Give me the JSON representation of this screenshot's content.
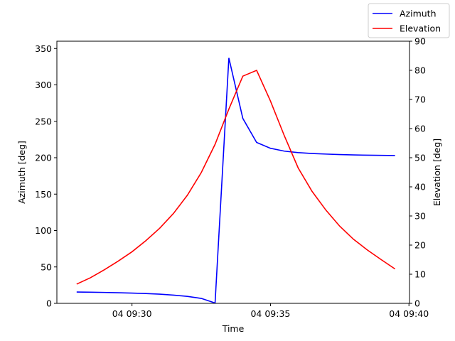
{
  "chart_data": {
    "type": "line",
    "xlabel": "Time",
    "ylabel_left": "Azimuth [deg]",
    "ylabel_right": "Elevation [deg]",
    "x_ticks": [
      {
        "t": 9.5,
        "label": "04 09:30"
      },
      {
        "t": 9.5833333,
        "label": "04 09:35"
      },
      {
        "t": 9.6666667,
        "label": "04 09:40"
      }
    ],
    "xlim_hours": [
      9.4548,
      9.667
    ],
    "ylim_left": [
      0,
      360
    ],
    "yticks_left": [
      "0",
      "50",
      "100",
      "150",
      "200",
      "250",
      "300",
      "350"
    ],
    "ylim_right": [
      0,
      90
    ],
    "yticks_right": [
      "0",
      "10",
      "20",
      "30",
      "40",
      "50",
      "60",
      "70",
      "80",
      "90"
    ],
    "legend_position": "top-right",
    "grid": false,
    "series": [
      {
        "name": "Azimuth",
        "axis": "left",
        "color": "#0000ff",
        "points": [
          [
            9.4667,
            15.5
          ],
          [
            9.475,
            15.3
          ],
          [
            9.4833,
            15.0
          ],
          [
            9.4917,
            14.6
          ],
          [
            9.5,
            14.1
          ],
          [
            9.5083,
            13.5
          ],
          [
            9.5167,
            12.6
          ],
          [
            9.525,
            11.3
          ],
          [
            9.5333,
            9.6
          ],
          [
            9.5417,
            6.8
          ],
          [
            9.55,
            0.5
          ],
          [
            9.5583,
            337
          ],
          [
            9.5667,
            254
          ],
          [
            9.575,
            221
          ],
          [
            9.5833,
            213
          ],
          [
            9.5917,
            209
          ],
          [
            9.6,
            207
          ],
          [
            9.6083,
            205.8
          ],
          [
            9.6167,
            205
          ],
          [
            9.625,
            204.3
          ],
          [
            9.6333,
            203.8
          ],
          [
            9.6417,
            203.5
          ],
          [
            9.65,
            203.2
          ],
          [
            9.6583,
            203
          ]
        ]
      },
      {
        "name": "Elevation",
        "axis": "right",
        "color": "#ff0000",
        "points": [
          [
            9.4667,
            6.6
          ],
          [
            9.475,
            8.8
          ],
          [
            9.4833,
            11.5
          ],
          [
            9.4917,
            14.5
          ],
          [
            9.5,
            17.7
          ],
          [
            9.5083,
            21.5
          ],
          [
            9.5167,
            25.8
          ],
          [
            9.525,
            30.9
          ],
          [
            9.5333,
            37.1
          ],
          [
            9.5417,
            44.9
          ],
          [
            9.55,
            54.6
          ],
          [
            9.5583,
            66.7
          ],
          [
            9.5667,
            78
          ],
          [
            9.575,
            80
          ],
          [
            9.5833,
            69.5
          ],
          [
            9.5917,
            57.5
          ],
          [
            9.6,
            46.5
          ],
          [
            9.6083,
            38.5
          ],
          [
            9.6167,
            32
          ],
          [
            9.625,
            26.5
          ],
          [
            9.6333,
            22
          ],
          [
            9.6417,
            18.3
          ],
          [
            9.65,
            15
          ],
          [
            9.6583,
            11.8
          ]
        ]
      }
    ]
  }
}
